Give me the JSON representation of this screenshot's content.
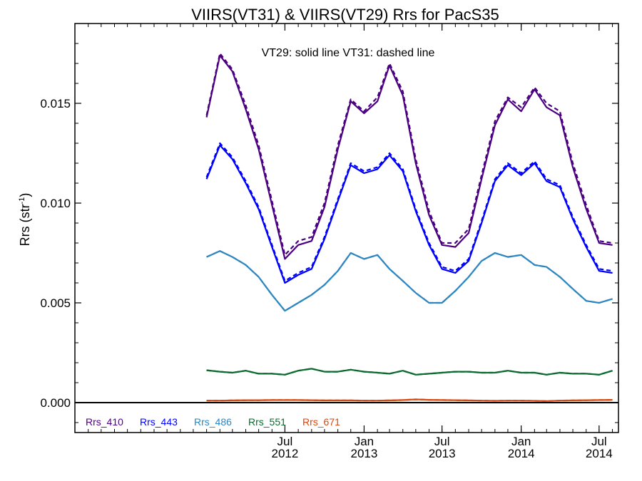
{
  "chart_data": {
    "type": "line",
    "title": "VIIRS(VT31) & VIIRS(VT29)  Rrs for PacS35",
    "annotation": "VT29: solid line   VT31: dashed line",
    "ylabel_main": "Rrs (str",
    "ylabel_sup": "-1",
    "ylabel_end": ")",
    "xlabel": "",
    "ylim": [
      -0.0015,
      0.019
    ],
    "xlim": [
      "2011-03-01",
      "2014-08-15"
    ],
    "yticks": [
      {
        "value": 0.0,
        "label": "0.000"
      },
      {
        "value": 0.005,
        "label": "0.005"
      },
      {
        "value": 0.01,
        "label": "0.010"
      },
      {
        "value": 0.015,
        "label": "0.015"
      }
    ],
    "xticks": [
      {
        "date": "2012-07-01",
        "month": "Jul",
        "year": "2012"
      },
      {
        "date": "2013-01-01",
        "month": "Jan",
        "year": "2013"
      },
      {
        "date": "2013-07-01",
        "month": "Jul",
        "year": "2013"
      },
      {
        "date": "2014-01-01",
        "month": "Jan",
        "year": "2014"
      },
      {
        "date": "2014-07-01",
        "month": "Jul",
        "year": "2014"
      }
    ],
    "x": [
      "2012-01-01",
      "2012-02-01",
      "2012-03-01",
      "2012-04-01",
      "2012-05-01",
      "2012-06-01",
      "2012-07-01",
      "2012-08-01",
      "2012-09-01",
      "2012-10-01",
      "2012-11-01",
      "2012-12-01",
      "2013-01-01",
      "2013-02-01",
      "2013-03-01",
      "2013-04-01",
      "2013-05-01",
      "2013-06-01",
      "2013-07-01",
      "2013-08-01",
      "2013-09-01",
      "2013-10-01",
      "2013-11-01",
      "2013-12-01",
      "2014-01-01",
      "2014-02-01",
      "2014-03-01",
      "2014-04-01",
      "2014-05-01",
      "2014-06-01",
      "2014-07-01",
      "2014-08-01"
    ],
    "series": [
      {
        "name": "Rrs_410",
        "color": "#4b0082",
        "vt29": [
          0.0143,
          0.0174,
          0.0166,
          0.0147,
          0.0127,
          0.0099,
          0.0072,
          0.0079,
          0.0081,
          0.0098,
          0.0127,
          0.0151,
          0.0145,
          0.0151,
          0.0169,
          0.0154,
          0.012,
          0.0094,
          0.0079,
          0.0078,
          0.0085,
          0.0112,
          0.0139,
          0.0152,
          0.0146,
          0.0157,
          0.0148,
          0.0144,
          0.0118,
          0.0097,
          0.008,
          0.0079
        ],
        "vt31": [
          0.0144,
          0.0175,
          0.0167,
          0.0149,
          0.0129,
          0.0101,
          0.0074,
          0.0081,
          0.0083,
          0.01,
          0.0129,
          0.0152,
          0.0146,
          0.0153,
          0.017,
          0.0156,
          0.0122,
          0.0096,
          0.008,
          0.008,
          0.0087,
          0.0114,
          0.0141,
          0.0153,
          0.0148,
          0.0158,
          0.015,
          0.0146,
          0.012,
          0.0099,
          0.0081,
          0.008
        ]
      },
      {
        "name": "Rrs_443",
        "color": "#0000ff",
        "vt29": [
          0.0112,
          0.0129,
          0.0122,
          0.011,
          0.0097,
          0.0078,
          0.006,
          0.0064,
          0.0067,
          0.0082,
          0.0101,
          0.0119,
          0.0115,
          0.0117,
          0.0124,
          0.0116,
          0.0096,
          0.0079,
          0.0067,
          0.0065,
          0.0071,
          0.009,
          0.0111,
          0.0119,
          0.0114,
          0.012,
          0.0111,
          0.0108,
          0.0092,
          0.0078,
          0.0066,
          0.0065
        ],
        "vt31": [
          0.0113,
          0.013,
          0.0123,
          0.0111,
          0.0098,
          0.0079,
          0.0061,
          0.0065,
          0.0068,
          0.0083,
          0.0102,
          0.012,
          0.0116,
          0.0118,
          0.0125,
          0.0117,
          0.0097,
          0.008,
          0.0068,
          0.0066,
          0.0072,
          0.0091,
          0.0112,
          0.012,
          0.0115,
          0.0121,
          0.0112,
          0.0109,
          0.0093,
          0.0079,
          0.0067,
          0.0066
        ]
      },
      {
        "name": "Rrs_486",
        "color": "#2e86c1",
        "vt29": [
          0.0073,
          0.0076,
          0.0073,
          0.0069,
          0.0063,
          0.0054,
          0.0046,
          0.005,
          0.0054,
          0.0059,
          0.0066,
          0.0075,
          0.0072,
          0.0074,
          0.0067,
          0.0061,
          0.0055,
          0.005,
          0.005,
          0.0056,
          0.0063,
          0.0071,
          0.0075,
          0.0073,
          0.0074,
          0.0069,
          0.0068,
          0.0063,
          0.0057,
          0.0051,
          0.005,
          0.0052
        ],
        "vt31": [
          0.0073,
          0.0076,
          0.0073,
          0.0069,
          0.0063,
          0.0054,
          0.0046,
          0.005,
          0.0054,
          0.0059,
          0.0066,
          0.0075,
          0.0072,
          0.0074,
          0.0067,
          0.0061,
          0.0055,
          0.005,
          0.005,
          0.0056,
          0.0063,
          0.0071,
          0.0075,
          0.0073,
          0.0074,
          0.0069,
          0.0068,
          0.0063,
          0.0057,
          0.0051,
          0.005,
          0.0052
        ]
      },
      {
        "name": "Rrs_551",
        "color": "#0b6b2e",
        "vt29": [
          0.00162,
          0.00155,
          0.0015,
          0.0016,
          0.00145,
          0.00145,
          0.0014,
          0.0016,
          0.0017,
          0.00155,
          0.00155,
          0.00165,
          0.00155,
          0.0015,
          0.00145,
          0.0016,
          0.0014,
          0.00145,
          0.0015,
          0.00155,
          0.00155,
          0.0015,
          0.0015,
          0.0016,
          0.0015,
          0.0015,
          0.0014,
          0.0015,
          0.00145,
          0.00145,
          0.0014,
          0.0016
        ],
        "vt31": [
          0.00162,
          0.00155,
          0.0015,
          0.0016,
          0.00145,
          0.00145,
          0.0014,
          0.0016,
          0.0017,
          0.00155,
          0.00155,
          0.00165,
          0.00155,
          0.0015,
          0.00145,
          0.0016,
          0.0014,
          0.00145,
          0.0015,
          0.00155,
          0.00155,
          0.0015,
          0.0015,
          0.0016,
          0.0015,
          0.0015,
          0.0014,
          0.0015,
          0.00145,
          0.00145,
          0.0014,
          0.0016
        ]
      },
      {
        "name": "Rrs_671",
        "color": "#d9480f",
        "vt29": [
          0.0001,
          0.0001,
          0.00011,
          0.00012,
          0.00012,
          0.00013,
          0.00013,
          0.00013,
          0.00012,
          0.00011,
          0.00011,
          0.00011,
          0.0001,
          0.0001,
          0.00011,
          0.00013,
          0.00016,
          0.00014,
          0.00013,
          0.00012,
          0.00011,
          0.0001,
          9e-05,
          0.0001,
          0.0001,
          9e-05,
          8e-05,
          0.0001,
          0.00011,
          0.00012,
          0.00013,
          0.00014
        ],
        "vt31": [
          0.0001,
          0.0001,
          0.00011,
          0.00012,
          0.00012,
          0.00013,
          0.00013,
          0.00013,
          0.00012,
          0.00011,
          0.00011,
          0.00011,
          0.0001,
          0.0001,
          0.00011,
          0.00013,
          0.00016,
          0.00014,
          0.00013,
          0.00012,
          0.00011,
          0.0001,
          9e-05,
          0.0001,
          0.0001,
          9e-05,
          8e-05,
          0.0001,
          0.00011,
          0.00012,
          0.00013,
          0.00014
        ]
      }
    ],
    "zero_line": true,
    "grid": false,
    "legend_position": "bottom-left"
  }
}
